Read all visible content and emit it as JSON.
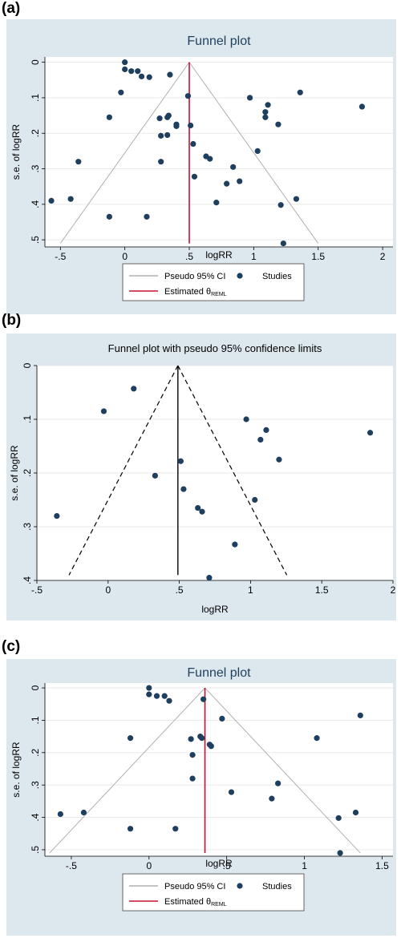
{
  "panels": [
    {
      "letter": "(a)",
      "chart_data": {
        "type": "scatter",
        "title": "Funnel plot",
        "xlabel": "logRR",
        "ylabel": "s.e. of logRR",
        "xlim": [
          -0.62,
          2.08
        ],
        "ylim": [
          0.52,
          -0.015
        ],
        "xticks": [
          -0.5,
          0,
          0.5,
          1,
          1.5,
          2
        ],
        "xtick_labels": [
          "-.5",
          "0",
          ".5",
          "1",
          "1.5",
          "2"
        ],
        "yticks": [
          0,
          0.1,
          0.2,
          0.3,
          0.4,
          0.5
        ],
        "ytick_labels": [
          "0",
          ".1",
          ".2",
          ".3",
          ".4",
          ".5"
        ],
        "y_inverted": true,
        "grid": "horizontal",
        "background": "#dde7ee",
        "plot_background": "#ffffff",
        "estimate": 0.5,
        "funnel_ymax": 0.51,
        "funnel_style": "solid",
        "funnel_color": "#b0b0b0",
        "estimate_color": "#c8102e",
        "point_color": "#1f3f5f",
        "legend": {
          "position": "bottom",
          "items": [
            {
              "type": "line",
              "label": "Pseudo 95% CI",
              "color": "#b0b0b0"
            },
            {
              "type": "dot",
              "label": "Studies",
              "color": "#1f3f5f"
            },
            {
              "type": "line",
              "label": "Estimated θ",
              "sub": "REML",
              "color": "#c8102e"
            }
          ]
        },
        "points": [
          [
            0.0,
            0.0
          ],
          [
            0.0,
            0.02
          ],
          [
            0.05,
            0.025
          ],
          [
            0.1,
            0.025
          ],
          [
            0.13,
            0.04
          ],
          [
            0.19,
            0.042
          ],
          [
            0.35,
            0.035
          ],
          [
            -0.03,
            0.085
          ],
          [
            0.49,
            0.095
          ],
          [
            -0.12,
            0.155
          ],
          [
            0.27,
            0.158
          ],
          [
            0.34,
            0.15
          ],
          [
            0.33,
            0.155
          ],
          [
            0.4,
            0.175
          ],
          [
            0.4,
            0.18
          ],
          [
            0.51,
            0.178
          ],
          [
            0.28,
            0.207
          ],
          [
            0.33,
            0.205
          ],
          [
            0.53,
            0.23
          ],
          [
            0.63,
            0.265
          ],
          [
            0.66,
            0.272
          ],
          [
            0.28,
            0.28
          ],
          [
            -0.36,
            0.28
          ],
          [
            0.54,
            0.322
          ],
          [
            0.84,
            0.295
          ],
          [
            0.89,
            0.335
          ],
          [
            0.79,
            0.342
          ],
          [
            0.97,
            0.1
          ],
          [
            1.09,
            0.14
          ],
          [
            1.09,
            0.155
          ],
          [
            1.11,
            0.12
          ],
          [
            1.19,
            0.175
          ],
          [
            1.36,
            0.085
          ],
          [
            1.84,
            0.125
          ],
          [
            1.03,
            0.25
          ],
          [
            0.71,
            0.395
          ],
          [
            -0.42,
            0.385
          ],
          [
            -0.57,
            0.39
          ],
          [
            -0.12,
            0.435
          ],
          [
            0.17,
            0.435
          ],
          [
            1.21,
            0.402
          ],
          [
            1.33,
            0.385
          ],
          [
            1.23,
            0.51
          ]
        ]
      }
    },
    {
      "letter": "(b)",
      "chart_data": {
        "type": "scatter",
        "title": "Funnel plot with pseudo 95% confidence limits",
        "xlabel": "logRR",
        "ylabel": "s.e. of logRR",
        "xlim": [
          -0.5,
          2.0
        ],
        "ylim": [
          0.4,
          0.0
        ],
        "xticks": [
          -0.5,
          0,
          0.5,
          1,
          1.5,
          2
        ],
        "xtick_labels": [
          "-.5",
          "0",
          ".5",
          "1",
          "1.5",
          "2"
        ],
        "yticks": [
          0,
          0.1,
          0.2,
          0.3,
          0.4
        ],
        "ytick_labels": [
          "0",
          ".1",
          ".2",
          ".3",
          ".4"
        ],
        "y_inverted": true,
        "grid": "horizontal",
        "background": "#dde7ee",
        "plot_background": "#ffffff",
        "estimate": 0.49,
        "funnel_ymax": 0.39,
        "funnel_style": "dashed",
        "funnel_color": "#000000",
        "estimate_color": "#000000",
        "point_color": "#1f3f5f",
        "legend": null,
        "points": [
          [
            0.18,
            0.043
          ],
          [
            -0.03,
            0.085
          ],
          [
            0.97,
            0.1
          ],
          [
            1.11,
            0.12
          ],
          [
            1.07,
            0.138
          ],
          [
            1.84,
            0.125
          ],
          [
            0.51,
            0.178
          ],
          [
            1.2,
            0.175
          ],
          [
            0.33,
            0.205
          ],
          [
            0.53,
            0.23
          ],
          [
            1.03,
            0.25
          ],
          [
            0.63,
            0.265
          ],
          [
            0.66,
            0.272
          ],
          [
            -0.36,
            0.28
          ],
          [
            0.89,
            0.333
          ],
          [
            0.71,
            0.395
          ]
        ]
      }
    },
    {
      "letter": "(c)",
      "chart_data": {
        "type": "scatter",
        "title": "Funnel plot",
        "xlabel": "logRR",
        "ylabel": "s.e. of logRR",
        "xlim": [
          -0.67,
          1.57
        ],
        "ylim": [
          0.52,
          -0.015
        ],
        "xticks": [
          -0.5,
          0,
          0.5,
          1,
          1.5
        ],
        "xtick_labels": [
          "-.5",
          "0",
          ".5",
          "1",
          "1.5"
        ],
        "yticks": [
          0,
          0.1,
          0.2,
          0.3,
          0.4,
          0.5
        ],
        "ytick_labels": [
          "0",
          ".1",
          ".2",
          ".3",
          ".4",
          ".5"
        ],
        "y_inverted": true,
        "grid": "horizontal",
        "background": "#dde7ee",
        "plot_background": "#ffffff",
        "estimate": 0.36,
        "funnel_ymax": 0.51,
        "funnel_style": "solid",
        "funnel_color": "#b0b0b0",
        "estimate_color": "#c8102e",
        "point_color": "#1f3f5f",
        "legend": {
          "position": "bottom",
          "items": [
            {
              "type": "line",
              "label": "Pseudo 95% CI",
              "color": "#b0b0b0"
            },
            {
              "type": "dot",
              "label": "Studies",
              "color": "#1f3f5f"
            },
            {
              "type": "line",
              "label": "Estimated θ",
              "sub": "REML",
              "color": "#c8102e"
            }
          ]
        },
        "points": [
          [
            0.0,
            0.0
          ],
          [
            0.0,
            0.02
          ],
          [
            0.05,
            0.025
          ],
          [
            0.1,
            0.025
          ],
          [
            0.13,
            0.04
          ],
          [
            0.35,
            0.035
          ],
          [
            0.47,
            0.095
          ],
          [
            -0.12,
            0.155
          ],
          [
            0.27,
            0.158
          ],
          [
            0.33,
            0.15
          ],
          [
            0.34,
            0.155
          ],
          [
            0.39,
            0.175
          ],
          [
            0.4,
            0.18
          ],
          [
            0.28,
            0.207
          ],
          [
            0.28,
            0.28
          ],
          [
            0.53,
            0.322
          ],
          [
            0.83,
            0.295
          ],
          [
            0.79,
            0.342
          ],
          [
            1.08,
            0.155
          ],
          [
            1.36,
            0.085
          ],
          [
            -0.42,
            0.385
          ],
          [
            -0.57,
            0.39
          ],
          [
            -0.12,
            0.435
          ],
          [
            0.17,
            0.435
          ],
          [
            1.22,
            0.402
          ],
          [
            1.33,
            0.385
          ],
          [
            1.23,
            0.51
          ]
        ]
      }
    }
  ]
}
